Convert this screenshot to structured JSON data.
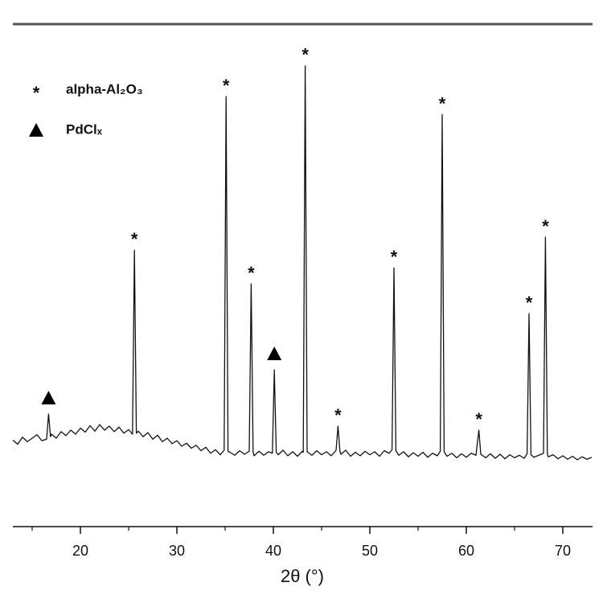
{
  "chart_data": {
    "type": "line",
    "x_label": "2θ (°)",
    "xlim": [
      13,
      73
    ],
    "xticks": [
      20,
      30,
      40,
      50,
      60,
      70
    ],
    "minor_xticks": [
      15,
      25,
      35,
      45,
      55,
      65
    ],
    "ylim": [
      0,
      100
    ],
    "color": "#111111",
    "x": [
      13,
      13.5,
      14,
      14.5,
      15,
      15.5,
      16,
      16.5,
      16.7,
      16.9,
      17,
      17.5,
      18,
      18.5,
      19,
      19.5,
      20,
      20.5,
      21,
      21.5,
      22,
      22.5,
      23,
      23.5,
      24,
      24.5,
      25,
      25.4,
      25.6,
      25.8,
      26,
      26.5,
      27,
      27.5,
      28,
      28.5,
      29,
      29.5,
      30,
      30.5,
      31,
      31.5,
      32,
      32.5,
      33,
      33.5,
      34,
      34.5,
      34.9,
      35.1,
      35.3,
      35.5,
      36,
      36.5,
      37,
      37.5,
      37.7,
      37.9,
      38,
      38.5,
      39,
      39.5,
      39.9,
      40.1,
      40.3,
      40.5,
      41,
      41.5,
      42,
      42.5,
      43,
      43.1,
      43.3,
      43.5,
      44,
      44.5,
      45,
      45.5,
      46,
      46.5,
      46.7,
      46.9,
      47,
      47.5,
      48,
      48.5,
      49,
      49.5,
      50,
      50.5,
      51,
      51.5,
      52,
      52.3,
      52.5,
      52.7,
      53,
      53.5,
      54,
      54.5,
      55,
      55.5,
      56,
      56.5,
      57,
      57.3,
      57.5,
      57.7,
      58,
      58.5,
      59,
      59.5,
      60,
      60.5,
      61,
      61.3,
      61.5,
      62,
      62.5,
      63,
      63.5,
      64,
      64.5,
      65,
      65.5,
      66,
      66.3,
      66.5,
      66.7,
      67,
      67.5,
      68,
      68.2,
      68.4,
      68.5,
      69,
      69.5,
      70,
      70.5,
      71,
      71.5,
      72,
      72.5,
      73
    ],
    "values": [
      17.2,
      16.4,
      17.8,
      16.9,
      17.6,
      18.3,
      17.1,
      17.4,
      22.4,
      17.9,
      18.4,
      17.6,
      18.9,
      18.1,
      19.2,
      18.4,
      19.6,
      18.8,
      20.1,
      19.0,
      20.3,
      19.2,
      20.0,
      18.9,
      19.8,
      18.6,
      19.3,
      18.4,
      55,
      18.6,
      19.0,
      17.9,
      18.7,
      17.4,
      18.2,
      16.9,
      17.6,
      16.5,
      17.1,
      16.0,
      16.6,
      15.6,
      16.2,
      15.1,
      15.8,
      14.6,
      15.3,
      14.3,
      15.2,
      85.6,
      15.0,
      14.8,
      14.2,
      15.1,
      14.4,
      15.0,
      48.3,
      14.9,
      14.1,
      15.0,
      14.2,
      14.9,
      14.6,
      31.2,
      14.8,
      14.3,
      15.2,
      14.1,
      14.9,
      14.0,
      15.0,
      14.8,
      91.7,
      14.9,
      14.2,
      15.1,
      14.3,
      14.9,
      14.1,
      15.2,
      20,
      15.0,
      14.4,
      15.2,
      14.0,
      14.8,
      14.1,
      15.0,
      14.3,
      14.9,
      14.0,
      15.1,
      14.6,
      15.3,
      51.5,
      15.1,
      14.2,
      14.9,
      13.9,
      14.7,
      14.0,
      14.8,
      13.8,
      14.6,
      14.1,
      15.0,
      82,
      14.9,
      14.0,
      14.6,
      13.7,
      14.5,
      13.8,
      14.6,
      14.2,
      19.2,
      14.4,
      13.7,
      14.5,
      13.6,
      14.4,
      13.5,
      14.3,
      13.7,
      14.2,
      13.6,
      14.5,
      42.4,
      14.3,
      13.8,
      14.2,
      14.6,
      57.6,
      14.4,
      13.9,
      14.3,
      13.5,
      14.1,
      13.4,
      14.0,
      13.3,
      13.9,
      13.4,
      13.8
    ],
    "series": [
      {
        "name": "alpha-Al₂O₃",
        "marker": "*",
        "color": "#000000",
        "x": [
          25.6,
          35.1,
          37.7,
          43.3,
          46.7,
          52.5,
          57.5,
          61.3,
          66.5,
          68.2
        ],
        "values": [
          55,
          85.6,
          48.3,
          91.7,
          20,
          51.5,
          82,
          19.2,
          42.4,
          57.6
        ]
      },
      {
        "name": "PdClₓ",
        "marker": "triangle",
        "color": "#000000",
        "x": [
          16.7,
          40.1
        ],
        "values": [
          22.4,
          31.2
        ]
      }
    ]
  }
}
